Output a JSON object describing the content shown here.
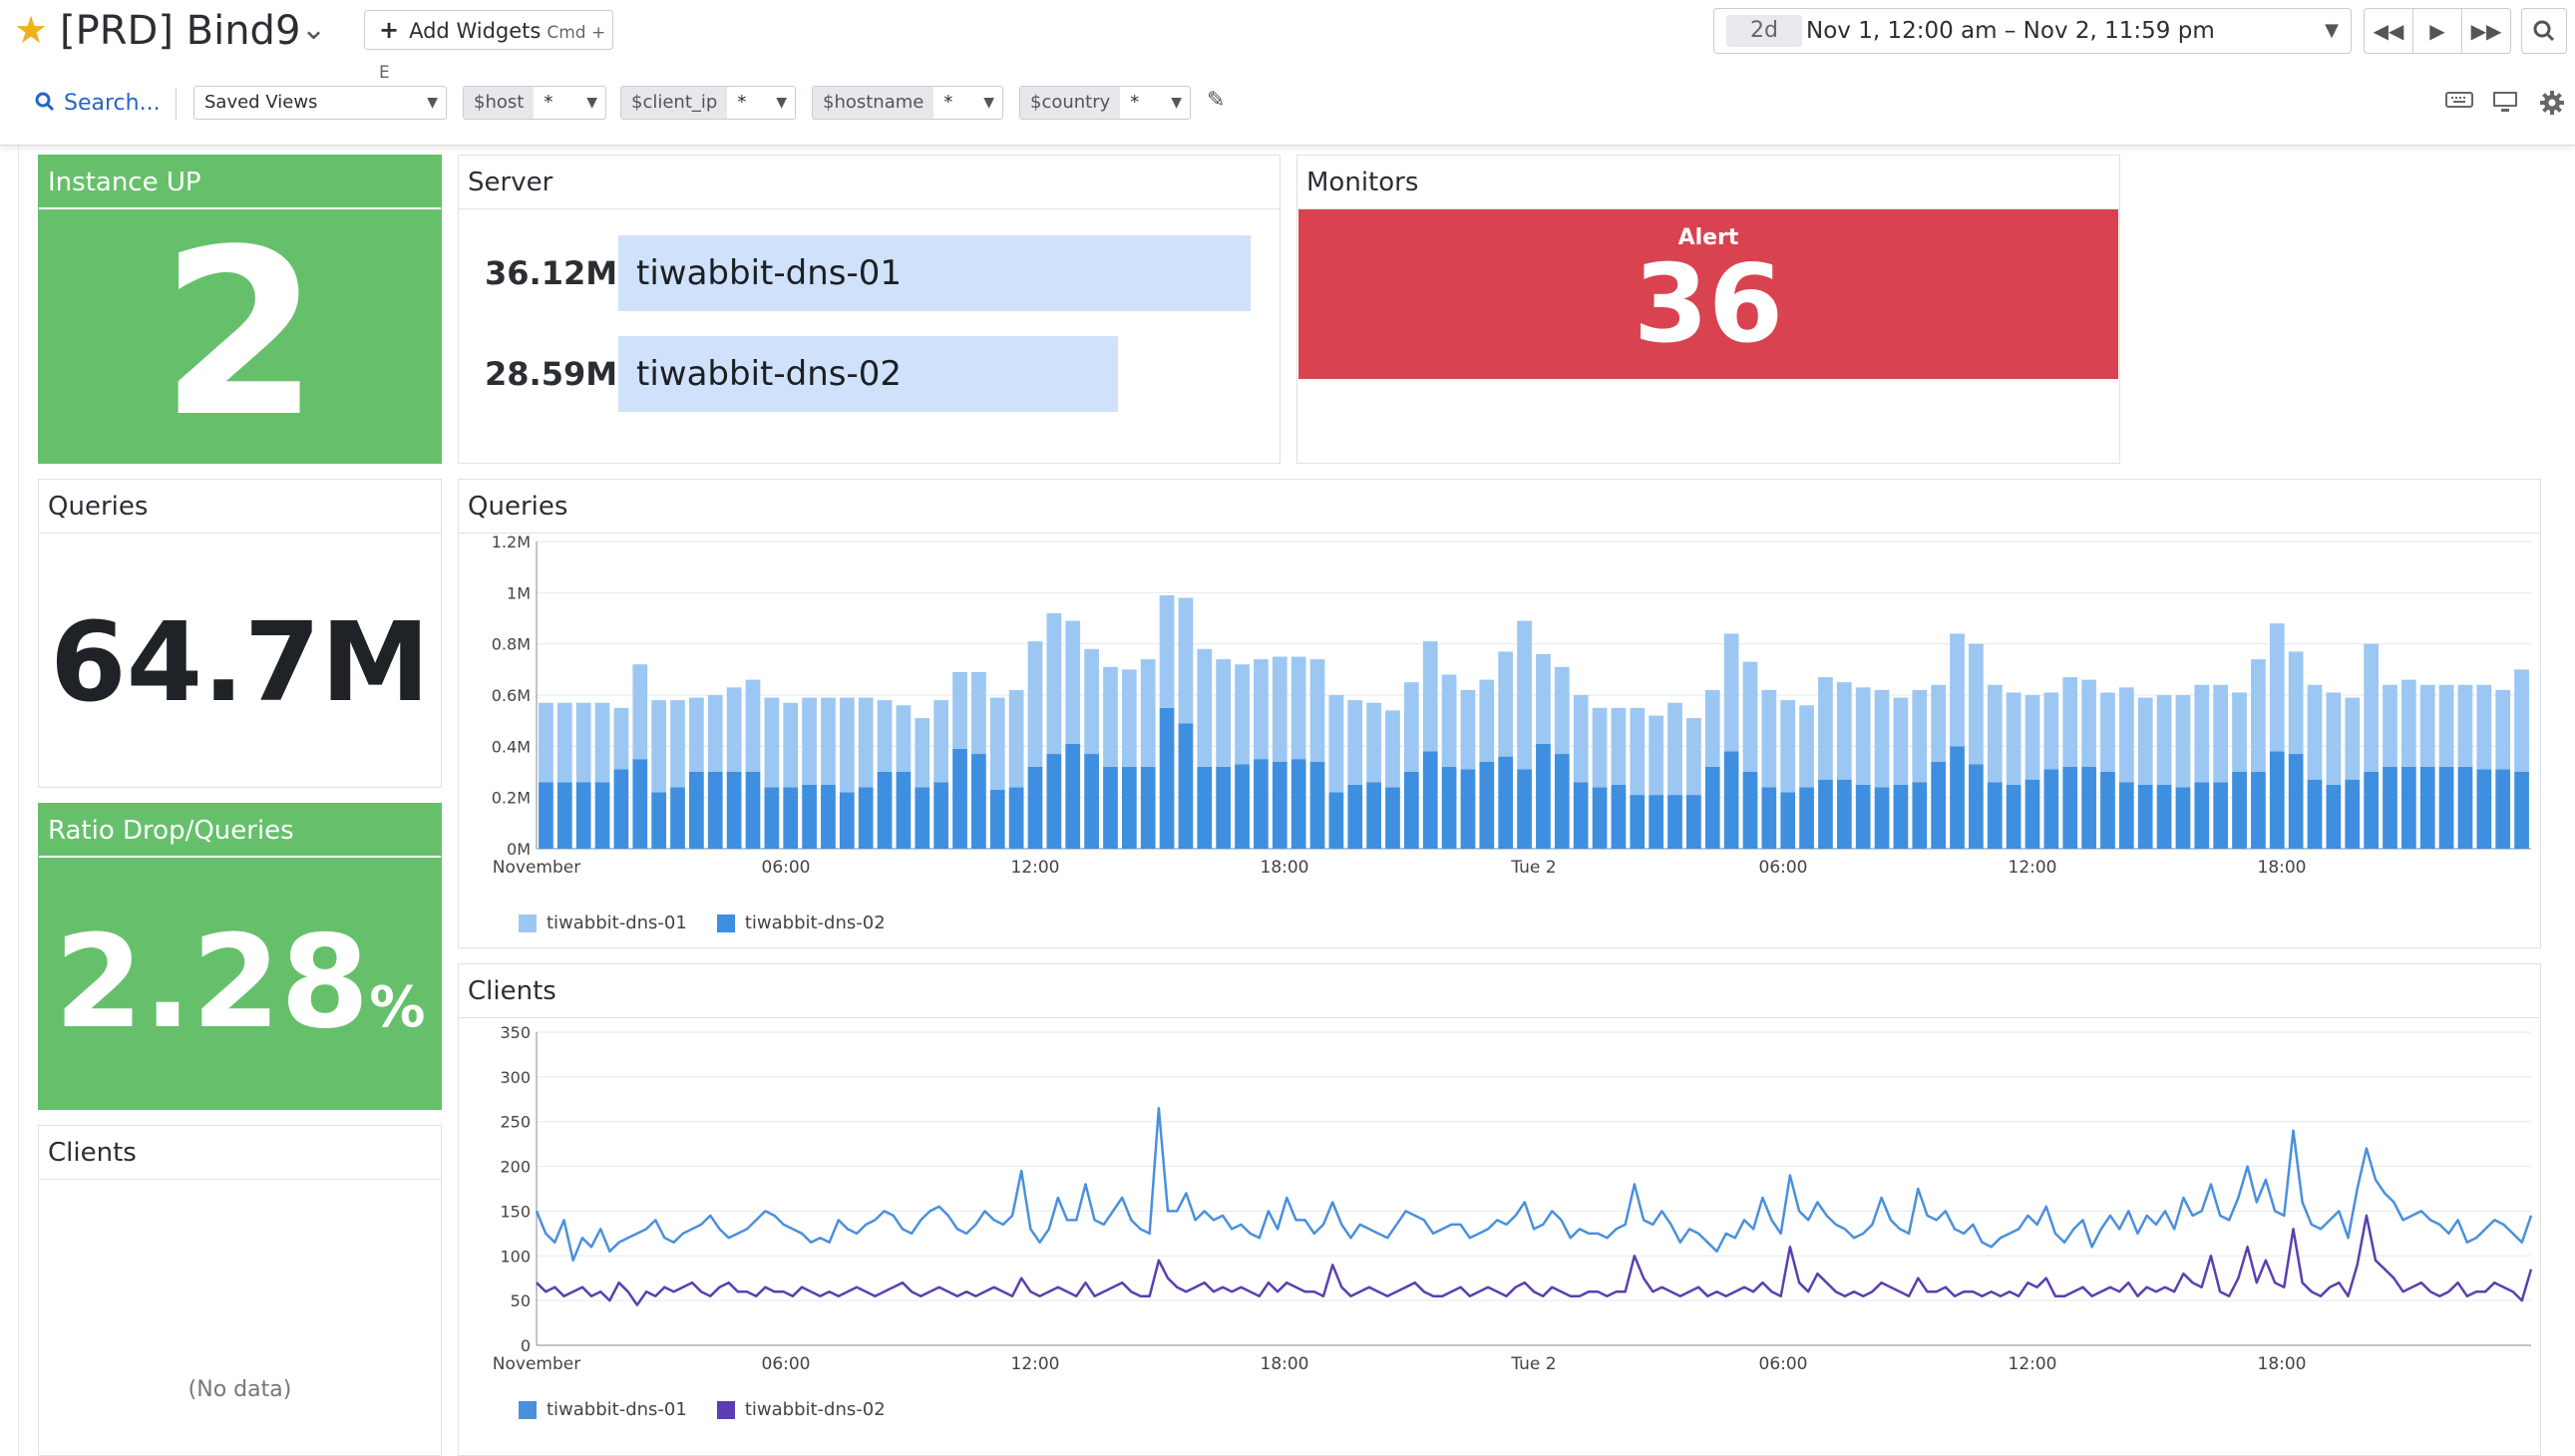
{
  "header": {
    "title": "[PRD] Bind9",
    "add_widgets": "Add Widgets",
    "add_widgets_shortcut": "Cmd + E",
    "time_badge": "2d",
    "time_range": "Nov 1, 12:00 am – Nov 2, 11:59 pm"
  },
  "toolbar": {
    "search": "Search...",
    "saved_views": "Saved Views",
    "template_vars": [
      {
        "name": "$host",
        "value": "*"
      },
      {
        "name": "$client_ip",
        "value": "*"
      },
      {
        "name": "$hostname",
        "value": "*"
      },
      {
        "name": "$country",
        "value": "*"
      }
    ]
  },
  "widgets": {
    "instance_up": {
      "title": "Instance UP",
      "value": "2"
    },
    "server": {
      "title": "Server",
      "rows": [
        {
          "value": "36.12M",
          "label": "tiwabbit-dns-01",
          "fraction": 1.0
        },
        {
          "value": "28.59M",
          "label": "tiwabbit-dns-02",
          "fraction": 0.79
        }
      ]
    },
    "monitors": {
      "title": "Monitors",
      "status": "Alert",
      "count": "36"
    },
    "queries_value": {
      "title": "Queries",
      "value": "64.7M"
    },
    "ratio": {
      "title": "Ratio Drop/Queries",
      "value": "2.28",
      "unit": "%"
    },
    "clients_value": {
      "title": "Clients",
      "empty": "(No data)"
    },
    "queries_chart": {
      "title": "Queries"
    },
    "clients_chart": {
      "title": "Clients"
    }
  },
  "colors": {
    "green": "#66c06b",
    "alert": "#d9434f",
    "dns01_light": "#9cc7f3",
    "dns02_bar": "#3f8fe0",
    "dns01_line": "#4a90dd",
    "dns02_line": "#5b3fb0"
  },
  "chart_data": [
    {
      "type": "bar",
      "stacked": true,
      "title": "Queries",
      "x_tick_labels": [
        "November",
        "06:00",
        "12:00",
        "18:00",
        "Tue 2",
        "06:00",
        "12:00",
        "18:00"
      ],
      "y_tick_labels": [
        "0M",
        "0.2M",
        "0.4M",
        "0.6M",
        "0.8M",
        "1M",
        "1.2M"
      ],
      "ylim": [
        0,
        1.2
      ],
      "y_unit": "M",
      "legend": "bottom-left",
      "series": [
        {
          "name": "tiwabbit-dns-02",
          "values": [
            0.26,
            0.26,
            0.26,
            0.26,
            0.31,
            0.35,
            0.22,
            0.24,
            0.3,
            0.3,
            0.3,
            0.3,
            0.24,
            0.24,
            0.25,
            0.25,
            0.22,
            0.24,
            0.3,
            0.3,
            0.24,
            0.26,
            0.39,
            0.37,
            0.23,
            0.24,
            0.32,
            0.37,
            0.41,
            0.37,
            0.32,
            0.32,
            0.32,
            0.55,
            0.49,
            0.32,
            0.32,
            0.33,
            0.35,
            0.34,
            0.35,
            0.34,
            0.22,
            0.25,
            0.26,
            0.24,
            0.3,
            0.38,
            0.32,
            0.31,
            0.34,
            0.36,
            0.31,
            0.41,
            0.37,
            0.26,
            0.24,
            0.25,
            0.21,
            0.21,
            0.21,
            0.21,
            0.32,
            0.38,
            0.3,
            0.24,
            0.22,
            0.24,
            0.27,
            0.27,
            0.25,
            0.24,
            0.25,
            0.26,
            0.34,
            0.4,
            0.33,
            0.26,
            0.25,
            0.27,
            0.31,
            0.32,
            0.32,
            0.3,
            0.26,
            0.25,
            0.25,
            0.24,
            0.26,
            0.26,
            0.3,
            0.3,
            0.38,
            0.37,
            0.27,
            0.25,
            0.27,
            0.3,
            0.32,
            0.32,
            0.32,
            0.32,
            0.32,
            0.31,
            0.31,
            0.3
          ],
          "approximate": true
        },
        {
          "name": "tiwabbit-dns-01",
          "values": [
            0.31,
            0.31,
            0.31,
            0.31,
            0.24,
            0.37,
            0.36,
            0.34,
            0.29,
            0.3,
            0.33,
            0.36,
            0.35,
            0.33,
            0.34,
            0.34,
            0.37,
            0.35,
            0.28,
            0.26,
            0.27,
            0.32,
            0.3,
            0.32,
            0.36,
            0.38,
            0.49,
            0.55,
            0.48,
            0.41,
            0.39,
            0.38,
            0.42,
            0.44,
            0.49,
            0.46,
            0.42,
            0.39,
            0.39,
            0.41,
            0.4,
            0.4,
            0.38,
            0.33,
            0.31,
            0.3,
            0.35,
            0.43,
            0.36,
            0.31,
            0.32,
            0.41,
            0.58,
            0.35,
            0.34,
            0.34,
            0.31,
            0.3,
            0.34,
            0.31,
            0.36,
            0.3,
            0.3,
            0.46,
            0.43,
            0.38,
            0.36,
            0.32,
            0.4,
            0.38,
            0.38,
            0.38,
            0.34,
            0.36,
            0.3,
            0.44,
            0.47,
            0.38,
            0.36,
            0.33,
            0.3,
            0.35,
            0.34,
            0.31,
            0.37,
            0.34,
            0.35,
            0.36,
            0.38,
            0.38,
            0.31,
            0.44,
            0.5,
            0.4,
            0.37,
            0.36,
            0.32,
            0.5,
            0.32,
            0.34,
            0.32,
            0.32,
            0.32,
            0.33,
            0.31,
            0.4
          ],
          "approximate": true
        }
      ]
    },
    {
      "type": "line",
      "title": "Clients",
      "x_tick_labels": [
        "November",
        "06:00",
        "12:00",
        "18:00",
        "Tue 2",
        "06:00",
        "12:00",
        "18:00"
      ],
      "y_tick_labels": [
        "0",
        "50",
        "100",
        "150",
        "200",
        "250",
        "300",
        "350"
      ],
      "ylim": [
        0,
        350
      ],
      "legend": "bottom-left",
      "series": [
        {
          "name": "tiwabbit-dns-01",
          "values": [
            150,
            125,
            115,
            140,
            95,
            120,
            110,
            130,
            105,
            115,
            120,
            125,
            130,
            140,
            120,
            115,
            125,
            130,
            135,
            145,
            130,
            120,
            125,
            130,
            140,
            150,
            145,
            135,
            130,
            125,
            115,
            120,
            115,
            140,
            130,
            125,
            135,
            140,
            150,
            145,
            130,
            125,
            140,
            150,
            155,
            145,
            130,
            125,
            135,
            150,
            140,
            135,
            145,
            195,
            130,
            115,
            130,
            165,
            140,
            140,
            180,
            140,
            135,
            150,
            165,
            140,
            130,
            125,
            265,
            150,
            150,
            170,
            140,
            150,
            140,
            145,
            130,
            135,
            125,
            120,
            150,
            130,
            165,
            140,
            140,
            125,
            135,
            160,
            135,
            120,
            135,
            130,
            125,
            120,
            135,
            150,
            145,
            140,
            125,
            130,
            135,
            135,
            120,
            125,
            130,
            140,
            135,
            145,
            160,
            130,
            135,
            150,
            140,
            120,
            130,
            125,
            125,
            120,
            130,
            135,
            180,
            140,
            135,
            150,
            135,
            115,
            130,
            125,
            115,
            105,
            125,
            120,
            140,
            130,
            165,
            140,
            125,
            190,
            150,
            140,
            160,
            145,
            135,
            130,
            120,
            125,
            135,
            165,
            140,
            130,
            125,
            175,
            145,
            140,
            150,
            130,
            125,
            135,
            115,
            110,
            120,
            125,
            130,
            145,
            135,
            155,
            125,
            115,
            130,
            140,
            110,
            130,
            145,
            130,
            150,
            125,
            145,
            135,
            150,
            130,
            165,
            145,
            150,
            180,
            145,
            140,
            165,
            200,
            160,
            185,
            150,
            145,
            240,
            160,
            135,
            130,
            140,
            150,
            120,
            175,
            220,
            185,
            170,
            160,
            140,
            145,
            150,
            140,
            135,
            125,
            140,
            115,
            120,
            130,
            140,
            135,
            125,
            115,
            145
          ],
          "approximate": true
        },
        {
          "name": "tiwabbit-dns-02",
          "values": [
            70,
            60,
            65,
            55,
            60,
            65,
            55,
            60,
            50,
            70,
            60,
            45,
            60,
            55,
            65,
            60,
            65,
            70,
            60,
            55,
            65,
            70,
            60,
            60,
            55,
            65,
            60,
            60,
            55,
            65,
            60,
            55,
            60,
            55,
            60,
            65,
            60,
            55,
            60,
            65,
            70,
            60,
            55,
            60,
            65,
            60,
            55,
            60,
            55,
            60,
            65,
            60,
            55,
            75,
            60,
            55,
            60,
            65,
            60,
            55,
            70,
            55,
            60,
            65,
            70,
            60,
            55,
            55,
            95,
            75,
            65,
            60,
            65,
            70,
            60,
            65,
            60,
            65,
            60,
            55,
            70,
            60,
            70,
            65,
            60,
            60,
            55,
            90,
            65,
            55,
            60,
            65,
            60,
            55,
            60,
            65,
            70,
            60,
            55,
            55,
            60,
            65,
            55,
            60,
            65,
            60,
            55,
            65,
            70,
            60,
            55,
            65,
            60,
            55,
            55,
            60,
            60,
            55,
            60,
            60,
            100,
            75,
            60,
            65,
            60,
            55,
            60,
            65,
            55,
            60,
            55,
            60,
            65,
            60,
            70,
            60,
            55,
            110,
            70,
            60,
            80,
            70,
            60,
            55,
            60,
            55,
            60,
            70,
            65,
            60,
            55,
            75,
            60,
            60,
            65,
            55,
            60,
            60,
            55,
            60,
            55,
            60,
            55,
            70,
            65,
            75,
            55,
            55,
            60,
            65,
            55,
            60,
            65,
            60,
            70,
            55,
            65,
            60,
            65,
            60,
            80,
            70,
            65,
            100,
            60,
            55,
            75,
            110,
            70,
            95,
            70,
            65,
            130,
            70,
            60,
            55,
            65,
            70,
            55,
            90,
            145,
            95,
            85,
            75,
            60,
            65,
            70,
            60,
            55,
            60,
            70,
            55,
            60,
            60,
            70,
            65,
            60,
            50,
            85
          ],
          "approximate": true
        }
      ]
    }
  ]
}
